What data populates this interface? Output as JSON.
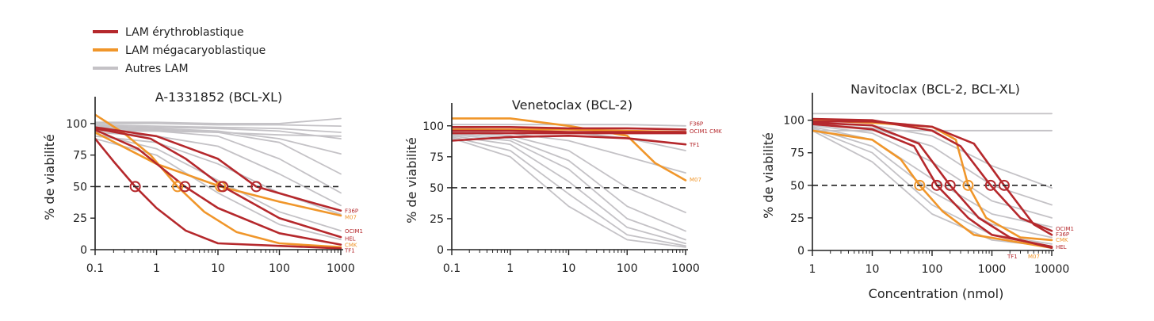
{
  "colors": {
    "erythro": "#b5282c",
    "megakaryo": "#f0962a",
    "other": "#c4c2c6",
    "axis": "#222222"
  },
  "legend": [
    {
      "label": "LAM érythroblastique",
      "color": "#b5282c"
    },
    {
      "label": "LAM mégacaryoblastique",
      "color": "#f0962a"
    },
    {
      "label": "Autres LAM",
      "color": "#c4c2c6"
    }
  ],
  "x_axis_label": "Concentration  (nmol)",
  "chart_data": [
    {
      "type": "line",
      "title": "A-1331852 (BCL-XL)",
      "ylabel": "% de viabilité",
      "xscale": "log",
      "xlim": [
        0.1,
        1000
      ],
      "ylim": [
        0,
        115
      ],
      "xticks": [
        0.1,
        1,
        10,
        100,
        1000
      ],
      "xtick_labels": [
        "0.1",
        "1",
        "10",
        "100",
        "1000"
      ],
      "yticks": [
        0,
        25,
        50,
        75,
        100
      ],
      "ytick_labels": [
        "0",
        "25",
        "50",
        "75",
        "100"
      ],
      "reference_line_y": 50,
      "ic50_markers": [
        {
          "x": 0.45,
          "group": "erythro"
        },
        {
          "x": 2.2,
          "group": "megakaryo"
        },
        {
          "x": 2.9,
          "group": "erythro"
        },
        {
          "x": 11,
          "group": "megakaryo"
        },
        {
          "x": 12,
          "group": "erythro"
        },
        {
          "x": 42,
          "group": "erythro"
        }
      ],
      "end_labels": [
        {
          "text": "F36P",
          "y": 31,
          "group": "erythro"
        },
        {
          "text": "M07",
          "y": 26,
          "group": "megakaryo"
        },
        {
          "text": "OCIM1",
          "y": 15,
          "group": "erythro"
        },
        {
          "text": "HEL",
          "y": 9,
          "group": "erythro"
        },
        {
          "text": "CMK",
          "y": 4,
          "group": "megakaryo"
        },
        {
          "text": "TF1",
          "y": 0,
          "group": "erythro"
        }
      ],
      "series": [
        {
          "group": "erythro",
          "x": [
            0.1,
            0.2,
            0.45,
            1,
            3,
            10,
            1000
          ],
          "y": [
            88,
            70,
            50,
            33,
            15,
            5,
            1
          ]
        },
        {
          "group": "erythro",
          "x": [
            0.1,
            0.5,
            2.9,
            10,
            100,
            1000
          ],
          "y": [
            95,
            80,
            50,
            33,
            13,
            4
          ]
        },
        {
          "group": "erythro",
          "x": [
            0.1,
            0.8,
            3,
            12,
            100,
            1000
          ],
          "y": [
            96,
            88,
            72,
            50,
            25,
            10
          ]
        },
        {
          "group": "erythro",
          "x": [
            0.1,
            1,
            10,
            42,
            300,
            1000
          ],
          "y": [
            97,
            90,
            72,
            50,
            38,
            31
          ]
        },
        {
          "group": "megakaryo",
          "x": [
            0.1,
            0.3,
            0.8,
            2.2,
            6,
            20,
            100,
            1000
          ],
          "y": [
            107,
            92,
            75,
            50,
            30,
            14,
            5,
            2
          ]
        },
        {
          "group": "megakaryo",
          "x": [
            0.1,
            1,
            11,
            100,
            1000
          ],
          "y": [
            93,
            68,
            50,
            38,
            27
          ]
        },
        {
          "group": "other",
          "x": [
            0.1,
            1,
            10,
            100,
            1000
          ],
          "y": [
            101,
            101,
            100,
            100,
            104
          ]
        },
        {
          "group": "other",
          "x": [
            0.1,
            1,
            10,
            100,
            1000
          ],
          "y": [
            100,
            100,
            99,
            99,
            98
          ]
        },
        {
          "group": "other",
          "x": [
            0.1,
            1,
            10,
            100,
            1000
          ],
          "y": [
            99,
            98,
            97,
            96,
            93
          ]
        },
        {
          "group": "other",
          "x": [
            0.1,
            1,
            10,
            100,
            1000
          ],
          "y": [
            98,
            97,
            96,
            94,
            88
          ]
        },
        {
          "group": "other",
          "x": [
            0.1,
            1,
            10,
            100,
            1000
          ],
          "y": [
            94,
            94,
            93,
            91,
            90
          ]
        },
        {
          "group": "other",
          "x": [
            0.1,
            1,
            10,
            100,
            1000
          ],
          "y": [
            97,
            96,
            94,
            88,
            76
          ]
        },
        {
          "group": "other",
          "x": [
            0.1,
            1,
            10,
            100,
            1000
          ],
          "y": [
            96,
            95,
            93,
            85,
            60
          ]
        },
        {
          "group": "other",
          "x": [
            0.1,
            1,
            10,
            100,
            1000
          ],
          "y": [
            95,
            94,
            90,
            72,
            45
          ]
        },
        {
          "group": "other",
          "x": [
            0.1,
            1,
            10,
            100,
            1000
          ],
          "y": [
            93,
            90,
            82,
            60,
            35
          ]
        },
        {
          "group": "other",
          "x": [
            0.1,
            1,
            10,
            100,
            1000
          ],
          "y": [
            90,
            85,
            68,
            45,
            28
          ]
        },
        {
          "group": "other",
          "x": [
            0.1,
            1,
            10,
            100,
            1000
          ],
          "y": [
            92,
            80,
            55,
            30,
            15
          ]
        },
        {
          "group": "other",
          "x": [
            0.1,
            1,
            10,
            100,
            1000
          ],
          "y": [
            88,
            75,
            45,
            20,
            8
          ]
        }
      ]
    },
    {
      "type": "line",
      "title": "Venetoclax (BCL-2)",
      "ylabel": "% de viabilité",
      "xscale": "log",
      "xlim": [
        0.1,
        1000
      ],
      "ylim": [
        0,
        112
      ],
      "xticks": [
        0.1,
        1,
        10,
        100,
        1000
      ],
      "xtick_labels": [
        "0.1",
        "1",
        "10",
        "100",
        "1000"
      ],
      "yticks": [
        0,
        25,
        50,
        75,
        100
      ],
      "ytick_labels": [
        "0",
        "25",
        "50",
        "75",
        "100"
      ],
      "reference_line_y": 50,
      "ic50_markers": [],
      "end_labels": [
        {
          "text": "F36P",
          "y": 102,
          "group": "erythro"
        },
        {
          "text": "OCIM1 CMK",
          "y": 96,
          "group": "erythro"
        },
        {
          "text": "TF1",
          "y": 85,
          "group": "erythro"
        },
        {
          "text": "M07",
          "y": 57,
          "group": "megakaryo"
        }
      ],
      "series": [
        {
          "group": "megakaryo",
          "x": [
            0.1,
            1,
            10,
            100,
            300,
            1000
          ],
          "y": [
            106,
            106,
            100,
            92,
            70,
            56
          ]
        },
        {
          "group": "megakaryo",
          "x": [
            0.1,
            1,
            10,
            100,
            1000
          ],
          "y": [
            97,
            97,
            97,
            96,
            95
          ]
        },
        {
          "group": "erythro",
          "x": [
            0.1,
            1,
            10,
            100,
            1000
          ],
          "y": [
            99,
            99,
            98,
            98,
            97
          ]
        },
        {
          "group": "erythro",
          "x": [
            0.1,
            1,
            10,
            100,
            1000
          ],
          "y": [
            96,
            96,
            95,
            95,
            95
          ]
        },
        {
          "group": "erythro",
          "x": [
            0.1,
            1,
            10,
            100,
            1000
          ],
          "y": [
            94,
            94,
            94,
            94,
            94
          ]
        },
        {
          "group": "erythro",
          "x": [
            0.1,
            1,
            10,
            100,
            1000
          ],
          "y": [
            88,
            91,
            92,
            90,
            85
          ]
        },
        {
          "group": "other",
          "x": [
            0.1,
            1,
            10,
            100,
            1000
          ],
          "y": [
            101,
            101,
            101,
            101,
            100
          ]
        },
        {
          "group": "other",
          "x": [
            0.1,
            1,
            10,
            100,
            1000
          ],
          "y": [
            98,
            97,
            95,
            90,
            80
          ]
        },
        {
          "group": "other",
          "x": [
            0.1,
            1,
            10,
            100,
            1000
          ],
          "y": [
            96,
            94,
            88,
            75,
            62
          ]
        },
        {
          "group": "other",
          "x": [
            0.1,
            1,
            10,
            100,
            1000
          ],
          "y": [
            95,
            92,
            80,
            50,
            30
          ]
        },
        {
          "group": "other",
          "x": [
            0.1,
            1,
            10,
            100,
            1000
          ],
          "y": [
            94,
            90,
            72,
            35,
            15
          ]
        },
        {
          "group": "other",
          "x": [
            0.1,
            1,
            10,
            100,
            1000
          ],
          "y": [
            93,
            88,
            65,
            25,
            8
          ]
        },
        {
          "group": "other",
          "x": [
            0.1,
            1,
            10,
            100,
            1000
          ],
          "y": [
            92,
            85,
            55,
            18,
            5
          ]
        },
        {
          "group": "other",
          "x": [
            0.1,
            1,
            10,
            100,
            1000
          ],
          "y": [
            91,
            80,
            45,
            12,
            3
          ]
        },
        {
          "group": "other",
          "x": [
            0.1,
            1,
            10,
            100,
            1000
          ],
          "y": [
            90,
            75,
            35,
            8,
            2
          ]
        }
      ]
    },
    {
      "type": "line",
      "title": "Navitoclax (BCL-2, BCL-XL)",
      "ylabel": "% de viabilité",
      "xlabel": "Concentration  (nmol)",
      "xscale": "log",
      "xlim": [
        1,
        10000
      ],
      "ylim": [
        0,
        115
      ],
      "xticks": [
        1,
        10,
        100,
        1000,
        10000
      ],
      "xtick_labels": [
        "1",
        "10",
        "100",
        "1000",
        "10000"
      ],
      "yticks": [
        0,
        25,
        50,
        75,
        100
      ],
      "ytick_labels": [
        "0",
        "25",
        "50",
        "75",
        "100"
      ],
      "reference_line_y": 50,
      "ic50_markers": [
        {
          "x": 62,
          "group": "megakaryo"
        },
        {
          "x": 120,
          "group": "erythro"
        },
        {
          "x": 200,
          "group": "erythro"
        },
        {
          "x": 400,
          "group": "megakaryo"
        },
        {
          "x": 950,
          "group": "erythro"
        },
        {
          "x": 1600,
          "group": "erythro"
        }
      ],
      "end_labels": [
        {
          "text": "OCIM1",
          "y": 17,
          "group": "erythro"
        },
        {
          "text": "F36P",
          "y": 13,
          "group": "erythro"
        },
        {
          "text": "CMK",
          "y": 9,
          "group": "megakaryo"
        },
        {
          "text": "HEL",
          "y": 3,
          "group": "erythro"
        },
        {
          "text": "TF1",
          "y": -4,
          "group": "erythro"
        },
        {
          "text": "M07",
          "y": -4,
          "group": "megakaryo"
        }
      ],
      "series": [
        {
          "group": "erythro",
          "x": [
            1,
            10,
            100,
            300,
            950,
            3000,
            10000
          ],
          "y": [
            101,
            100,
            92,
            80,
            50,
            25,
            15
          ]
        },
        {
          "group": "erythro",
          "x": [
            1,
            10,
            100,
            500,
            1600,
            5000,
            10000
          ],
          "y": [
            99,
            99,
            95,
            82,
            50,
            20,
            12
          ]
        },
        {
          "group": "erythro",
          "x": [
            1,
            10,
            50,
            120,
            400,
            1000,
            10000
          ],
          "y": [
            97,
            93,
            80,
            50,
            25,
            12,
            3
          ]
        },
        {
          "group": "erythro",
          "x": [
            1,
            10,
            60,
            200,
            600,
            2000,
            10000
          ],
          "y": [
            98,
            96,
            82,
            50,
            25,
            10,
            2
          ]
        },
        {
          "group": "megakaryo",
          "x": [
            1,
            10,
            30,
            62,
            150,
            500,
            10000
          ],
          "y": [
            92,
            85,
            70,
            50,
            30,
            12,
            2
          ]
        },
        {
          "group": "megakaryo",
          "x": [
            1,
            10,
            100,
            250,
            400,
            800,
            3000,
            10000
          ],
          "y": [
            100,
            98,
            95,
            85,
            50,
            25,
            10,
            8
          ]
        },
        {
          "group": "other",
          "x": [
            1,
            10,
            100,
            1000,
            10000
          ],
          "y": [
            105,
            105,
            105,
            105,
            105
          ]
        },
        {
          "group": "other",
          "x": [
            1,
            10,
            100,
            1000,
            10000
          ],
          "y": [
            92,
            92,
            92,
            92,
            92
          ]
        },
        {
          "group": "other",
          "x": [
            1,
            10,
            100,
            1000,
            10000
          ],
          "y": [
            98,
            96,
            88,
            65,
            48
          ]
        },
        {
          "group": "other",
          "x": [
            1,
            10,
            100,
            1000,
            10000
          ],
          "y": [
            97,
            94,
            80,
            50,
            35
          ]
        },
        {
          "group": "other",
          "x": [
            1,
            10,
            100,
            1000,
            10000
          ],
          "y": [
            96,
            90,
            68,
            38,
            25
          ]
        },
        {
          "group": "other",
          "x": [
            1,
            10,
            100,
            1000,
            10000
          ],
          "y": [
            95,
            85,
            55,
            28,
            18
          ]
        },
        {
          "group": "other",
          "x": [
            1,
            10,
            100,
            1000,
            10000
          ],
          "y": [
            94,
            80,
            45,
            20,
            10
          ]
        },
        {
          "group": "other",
          "x": [
            1,
            10,
            100,
            1000,
            10000
          ],
          "y": [
            93,
            75,
            35,
            12,
            5
          ]
        },
        {
          "group": "other",
          "x": [
            1,
            10,
            100,
            1000,
            10000
          ],
          "y": [
            92,
            68,
            28,
            8,
            3
          ]
        }
      ]
    }
  ]
}
